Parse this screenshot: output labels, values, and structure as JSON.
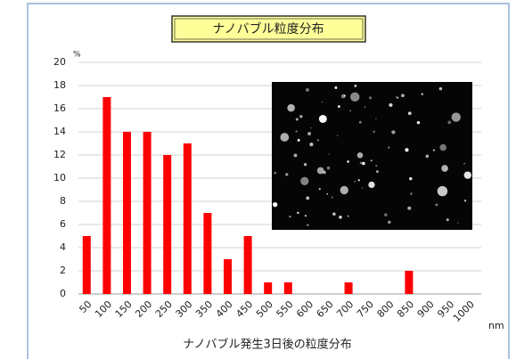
{
  "chart_data": {
    "type": "bar",
    "title": "ナノバブル粒度分布",
    "x_label": "ナノバブル発生3日後の粒度分布",
    "x_unit": "nm",
    "y_unit": "%",
    "categories": [
      "50",
      "100",
      "150",
      "200",
      "250",
      "300",
      "350",
      "400",
      "450",
      "500",
      "550",
      "600",
      "650",
      "700",
      "750",
      "800",
      "850",
      "900",
      "950",
      "1000"
    ],
    "values": [
      5,
      17,
      14,
      14,
      12,
      13,
      7,
      3,
      5,
      1,
      1,
      0,
      0,
      1,
      0,
      0,
      2,
      0,
      0,
      0
    ],
    "color": "#ff0000",
    "ylim": [
      0,
      20
    ],
    "yticks": [
      0,
      2,
      4,
      6,
      8,
      10,
      12,
      14,
      16,
      18,
      20
    ],
    "grid": true
  }
}
